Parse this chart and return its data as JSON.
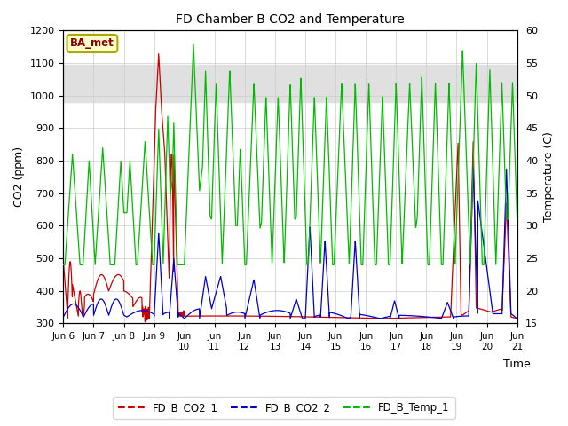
{
  "title": "FD Chamber B CO2 and Temperature",
  "ylabel_left": "CO2 (ppm)",
  "ylabel_right": "Temperature (C)",
  "xlabel": "Time",
  "ylim_left": [
    300,
    1200
  ],
  "ylim_right": [
    15,
    60
  ],
  "legend_labels": [
    "FD_B_CO2_1",
    "FD_B_CO2_2",
    "FD_B_Temp_1"
  ],
  "legend_colors": [
    "#cc0000",
    "#0000cc",
    "#00bb00"
  ],
  "annotation_text": "BA_met",
  "annotation_box_facecolor": "#ffffcc",
  "annotation_box_edgecolor": "#aaaa00",
  "annotation_text_color": "#880000",
  "bg_band_color": "#e0e0e0",
  "co2_1_color": "#cc0000",
  "co2_2_color": "#0000cc",
  "temp_1_color": "#00bb00",
  "x_tick_labels": [
    "Jun 6",
    "Jun 7",
    "Jun 8",
    "Jun 9",
    "Jun\n10",
    "Jun\n11",
    "Jun\n12",
    "Jun\n13",
    "Jun\n14",
    "Jun\n15",
    "Jun\n16",
    "Jun\n17",
    "Jun\n18",
    "Jun\n19",
    "Jun\n20",
    "Jun\n21"
  ],
  "grid_color": "#cccccc",
  "fig_facecolor": "#ffffff"
}
